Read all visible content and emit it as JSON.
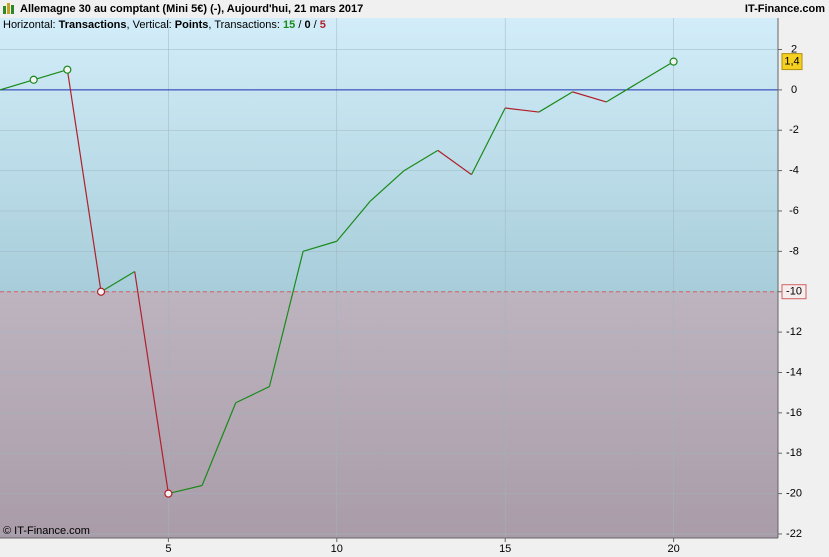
{
  "header": {
    "title": "Allemagne 30 au comptant (Mini 5€) (-), Aujourd'hui, 21 mars 2017",
    "site": "IT-Finance.com",
    "subtitle_parts": [
      {
        "text": "Horizontal: ",
        "bold": false,
        "color": "#000000"
      },
      {
        "text": "Transactions",
        "bold": true,
        "color": "#000000"
      },
      {
        "text": ", Vertical: ",
        "bold": false,
        "color": "#000000"
      },
      {
        "text": "Points",
        "bold": true,
        "color": "#000000"
      },
      {
        "text": ", Transactions: ",
        "bold": false,
        "color": "#000000"
      },
      {
        "text": "15",
        "bold": true,
        "color": "#1a8a1a"
      },
      {
        "text": " / ",
        "bold": false,
        "color": "#000000"
      },
      {
        "text": "0",
        "bold": true,
        "color": "#000000"
      },
      {
        "text": " / ",
        "bold": false,
        "color": "#000000"
      },
      {
        "text": "5",
        "bold": true,
        "color": "#b0202a"
      }
    ]
  },
  "footer": "© IT-Finance.com",
  "chart_data": {
    "type": "line",
    "x": [
      0,
      1,
      2,
      3,
      4,
      5,
      6,
      7,
      8,
      9,
      10,
      11,
      12,
      13,
      14,
      15,
      16,
      17,
      18,
      19,
      20
    ],
    "values": [
      0,
      0.5,
      1,
      -10,
      -9,
      -20,
      -19.6,
      -15.5,
      -14.7,
      -8,
      -7.5,
      -5.5,
      -4,
      -3,
      -4.2,
      -0.9,
      -1.1,
      -0.1,
      -0.6,
      0.4,
      1.4
    ],
    "value_labels": [
      null,
      null,
      null,
      null,
      null,
      null,
      null,
      null,
      null,
      null,
      null,
      null,
      null,
      null,
      null,
      null,
      null,
      null,
      null,
      null,
      "1,4"
    ],
    "markers": [
      1,
      2,
      3,
      5,
      20
    ],
    "up_color": "#1a8a1a",
    "down_color": "#b0202a",
    "xlim": [
      0,
      23.1
    ],
    "xticks": [
      5,
      10,
      15,
      20
    ],
    "ylim": [
      -22.2,
      3.56
    ],
    "yticks": [
      2,
      0,
      -2,
      -4,
      -6,
      -8,
      -10,
      -12,
      -14,
      -16,
      -18,
      -20,
      -22
    ],
    "zero_line_color": "#2030b0",
    "threshold": -10,
    "threshold_color": "#d06060",
    "grid": true
  }
}
